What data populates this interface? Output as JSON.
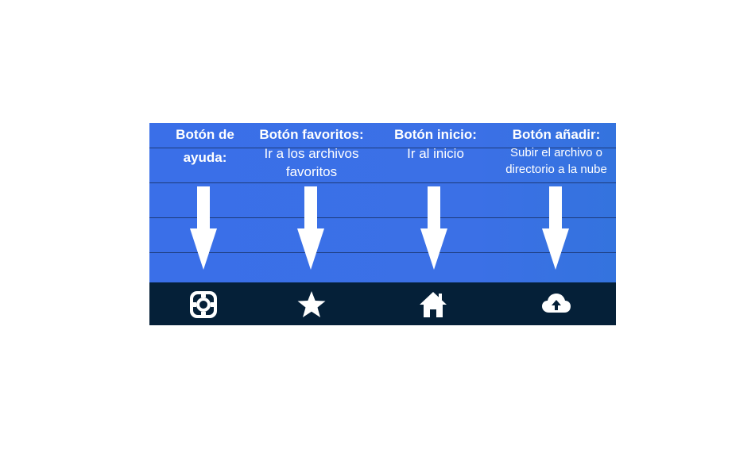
{
  "columns": [
    {
      "title": "Botón de ayuda:",
      "title_line1": "Botón de",
      "title_line2": "ayuda:",
      "description": ""
    },
    {
      "title": "Botón favoritos:",
      "description_line1": "Ir a los archivos",
      "description_line2": "favoritos"
    },
    {
      "title": "Botón inicio:",
      "description_line1": "Ir al inicio"
    },
    {
      "title": "Botón añadir:",
      "description_line1": "Subir el archivo o",
      "description_line2": "directorio a la nube"
    }
  ],
  "nav_bar": {
    "items": [
      {
        "icon": "help-lifebuoy-icon"
      },
      {
        "icon": "star-icon"
      },
      {
        "icon": "home-icon"
      },
      {
        "icon": "cloud-upload-icon"
      }
    ]
  },
  "colors": {
    "panel_blue": "#3a6fe8",
    "nav_dark": "#052038",
    "text": "#ffffff"
  }
}
